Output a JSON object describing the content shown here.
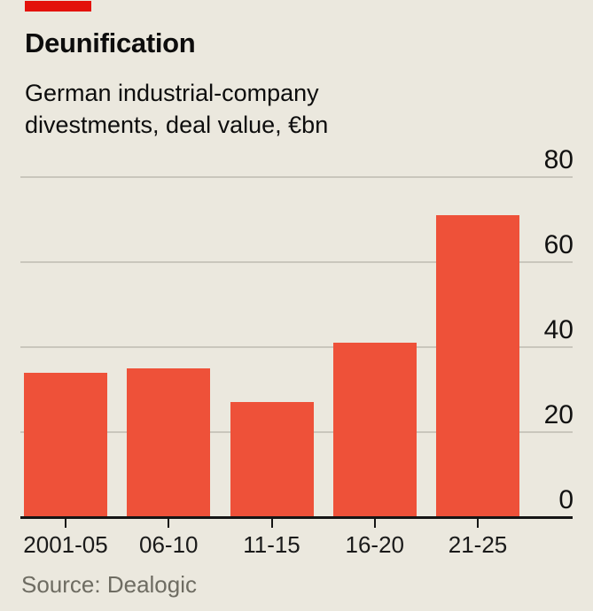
{
  "colors": {
    "background": "#ebe8de",
    "bar": "#ee5139",
    "brand_tag": "#e3120b",
    "gridline": "#c9c6bc",
    "axis": "#151515",
    "text": "#111111",
    "source_text": "#6e6c62"
  },
  "header": {
    "title": "Deunification",
    "subtitle_line1": "German industrial-company",
    "subtitle_line2": "divestments, deal value, €bn"
  },
  "chart_data": {
    "type": "bar",
    "title": "Deunification",
    "subtitle": "German industrial-company divestments, deal value, €bn",
    "unit": "€bn",
    "categories": [
      "2001-05",
      "06-10",
      "11-15",
      "16-20",
      "21-25"
    ],
    "values": [
      34,
      35,
      27,
      41,
      71
    ],
    "xlabel": "",
    "ylabel": "Deal value, €bn",
    "ylim": [
      0,
      80
    ],
    "yticks": [
      0,
      20,
      40,
      60,
      80
    ],
    "grid": "horizontal",
    "y_tick_label_position": "right",
    "legend": "none",
    "bar_color": "#ee5139"
  },
  "footer": {
    "source": "Source: Dealogic"
  }
}
